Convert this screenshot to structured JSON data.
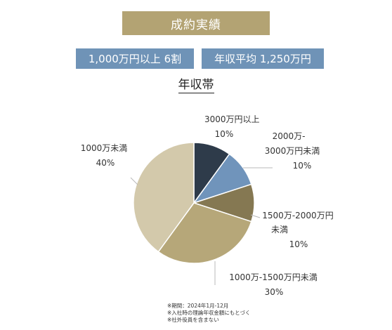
{
  "header": {
    "title": "成約実績",
    "badge_1": "1,000万円以上 6割",
    "badge_2": "年収平均 1,250万円",
    "subtitle": "年収帯"
  },
  "chart_data": {
    "type": "pie",
    "slices": [
      {
        "name_lines": [
          "3000万円以上"
        ],
        "value": 10,
        "label": "10%",
        "color": "#2e3b4a"
      },
      {
        "name_lines": [
          "2000万-",
          "3000万円未満"
        ],
        "value": 10,
        "label": "10%",
        "color": "#7094bb"
      },
      {
        "name_lines": [
          "1500万-2000万円",
          "未満"
        ],
        "value": 10,
        "label": "10%",
        "color": "#857852"
      },
      {
        "name_lines": [
          "1000万-1500万円未満"
        ],
        "value": 30,
        "label": "30%",
        "color": "#b6a779"
      },
      {
        "name_lines": [
          "1000万未満"
        ],
        "value": 40,
        "label": "40%",
        "color": "#d3c9ab"
      }
    ]
  },
  "notes": [
    "※期間：2024年1月-12月",
    "※入社時の理論年収金額にもとづく",
    "※社外役員を含まない"
  ]
}
